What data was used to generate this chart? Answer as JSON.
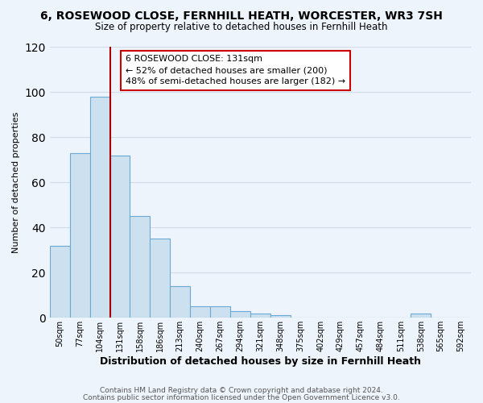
{
  "title": "6, ROSEWOOD CLOSE, FERNHILL HEATH, WORCESTER, WR3 7SH",
  "subtitle": "Size of property relative to detached houses in Fernhill Heath",
  "xlabel": "Distribution of detached houses by size in Fernhill Heath",
  "ylabel": "Number of detached properties",
  "bar_heights": [
    32,
    73,
    98,
    72,
    45,
    35,
    14,
    5,
    5,
    3,
    2,
    1,
    0,
    0,
    0,
    0,
    0,
    0,
    2,
    0,
    0
  ],
  "x_labels": [
    "50sqm",
    "77sqm",
    "104sqm",
    "131sqm",
    "158sqm",
    "186sqm",
    "213sqm",
    "240sqm",
    "267sqm",
    "294sqm",
    "321sqm",
    "348sqm",
    "375sqm",
    "402sqm",
    "429sqm",
    "457sqm",
    "484sqm",
    "511sqm",
    "538sqm",
    "565sqm",
    "592sqm"
  ],
  "bar_color": "#cce0f0",
  "bar_edge_color": "#6aaad4",
  "red_line_x": 2.5,
  "annotation_text": "6 ROSEWOOD CLOSE: 131sqm\n← 52% of detached houses are smaller (200)\n48% of semi-detached houses are larger (182) →",
  "annotation_box_color": "#ffffff",
  "annotation_box_edge": "#cc0000",
  "red_line_color": "#aa0000",
  "ylim": [
    0,
    120
  ],
  "yticks": [
    0,
    20,
    40,
    60,
    80,
    100,
    120
  ],
  "footer_line1": "Contains HM Land Registry data © Crown copyright and database right 2024.",
  "footer_line2": "Contains public sector information licensed under the Open Government Licence v3.0.",
  "background_color": "#eef4fb",
  "grid_color": "#d0dce8"
}
